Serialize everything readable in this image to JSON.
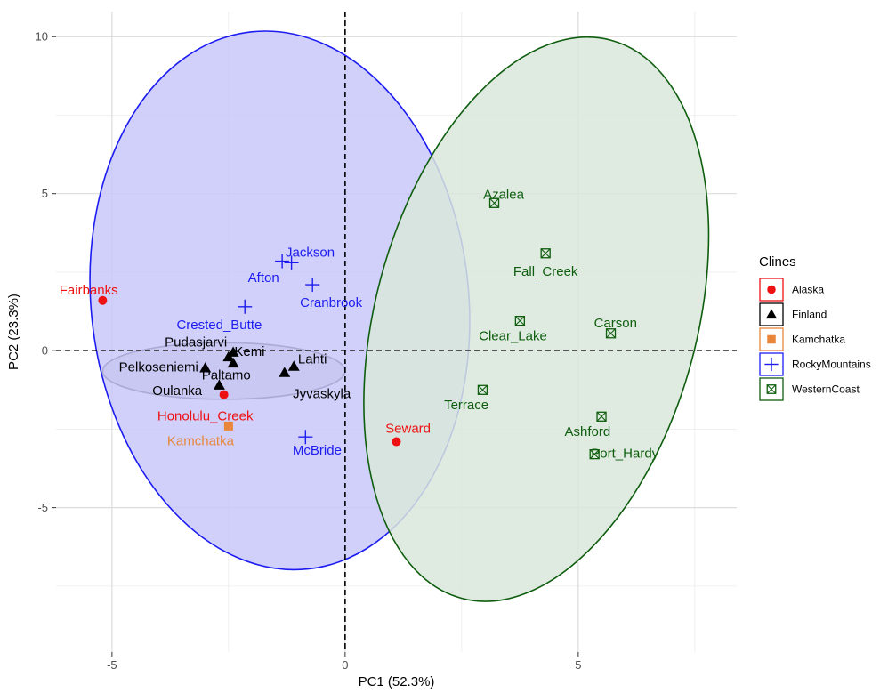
{
  "chart_data": {
    "type": "scatter",
    "title": "",
    "xlabel": "PC1 (52.3%)",
    "ylabel": "PC2 (23.3%)",
    "xlim": [
      -6.2,
      8.4
    ],
    "ylim": [
      -9.6,
      10.8
    ],
    "x_ticks": [
      -5,
      0,
      5
    ],
    "y_ticks": [
      -5,
      0,
      5,
      10
    ],
    "x_tick_labels": [
      "-5",
      "0",
      "5"
    ],
    "y_tick_labels": [
      "-5",
      "0",
      "5",
      "10"
    ],
    "grid": true,
    "reference_lines": {
      "x": 0,
      "y": 0,
      "style": "dashed"
    },
    "legend": {
      "title": "Clines",
      "position": "right",
      "entries": [
        {
          "name": "Alaska",
          "color": "#ee1111",
          "shape": "circle"
        },
        {
          "name": "Finland",
          "color": "#000000",
          "shape": "triangle"
        },
        {
          "name": "Kamchatka",
          "color": "#e8863a",
          "shape": "square"
        },
        {
          "name": "RockyMountains",
          "color": "#1c1cf0",
          "shape": "plus"
        },
        {
          "name": "WesternCoast",
          "color": "#0f5e0f",
          "shape": "boxcross"
        }
      ]
    },
    "ellipses": [
      {
        "group": "Finland",
        "cx": -2.6,
        "cy": -0.65,
        "rx": 2.6,
        "ry": 0.9,
        "angle": 0,
        "fill": "#bdbdbd",
        "stroke": "#000000"
      },
      {
        "group": "RockyMountains",
        "cx": -1.4,
        "cy": 1.6,
        "rx": 4.05,
        "ry": 8.6,
        "angle": -6,
        "fill": "#c8c8fa",
        "stroke": "#1c1cf0"
      },
      {
        "group": "WesternCoast",
        "cx": 4.1,
        "cy": 1.0,
        "rx": 3.45,
        "ry": 9.2,
        "angle": 15,
        "fill": "#d9e8da",
        "stroke": "#0f5e0f"
      }
    ],
    "series": [
      {
        "name": "Alaska",
        "color": "#ee1111",
        "shape": "circle",
        "points": [
          {
            "label": "Fairbanks",
            "x": -5.2,
            "y": 1.6,
            "lx": -5.5,
            "ly": 1.9
          },
          {
            "label": "Honolulu_Creek",
            "x": -2.6,
            "y": -1.4,
            "lx": -3.0,
            "ly": -2.1
          },
          {
            "label": "Seward",
            "x": 1.1,
            "y": -2.9,
            "lx": 1.35,
            "ly": -2.5
          }
        ]
      },
      {
        "name": "Finland",
        "color": "#000000",
        "shape": "triangle",
        "points": [
          {
            "label": "Pudasjarvi",
            "x": -2.5,
            "y": -0.2,
            "lx": -3.2,
            "ly": 0.25
          },
          {
            "label": "Kemi",
            "x": -2.4,
            "y": -0.05,
            "lx": -2.05,
            "ly": -0.05
          },
          {
            "label": "Lahti",
            "x": -1.1,
            "y": -0.5,
            "lx": -0.7,
            "ly": -0.3
          },
          {
            "label": "Pelkoseniemi",
            "x": -3.0,
            "y": -0.55,
            "lx": -4.0,
            "ly": -0.55
          },
          {
            "label": "Paltamo",
            "x": -2.4,
            "y": -0.4,
            "lx": -2.55,
            "ly": -0.8
          },
          {
            "label": "Jyvaskyla",
            "x": -1.3,
            "y": -0.7,
            "lx": -0.5,
            "ly": -1.4
          },
          {
            "label": "Oulanka",
            "x": -2.7,
            "y": -1.1,
            "lx": -3.6,
            "ly": -1.3
          }
        ]
      },
      {
        "name": "Kamchatka",
        "color": "#e8863a",
        "shape": "square",
        "points": [
          {
            "label": "Kamchatka",
            "x": -2.5,
            "y": -2.4,
            "lx": -3.1,
            "ly": -2.9
          }
        ]
      },
      {
        "name": "RockyMountains",
        "color": "#1c1cf0",
        "shape": "plus",
        "points": [
          {
            "label": "Jackson",
            "x": -1.15,
            "y": 2.8,
            "lx": -0.75,
            "ly": 3.1
          },
          {
            "label": "Afton",
            "x": -1.35,
            "y": 2.85,
            "lx": -1.75,
            "ly": 2.3
          },
          {
            "label": "Cranbrook",
            "x": -0.7,
            "y": 2.1,
            "lx": -0.3,
            "ly": 1.5
          },
          {
            "label": "Crested_Butte",
            "x": -2.15,
            "y": 1.4,
            "lx": -2.7,
            "ly": 0.8
          },
          {
            "label": "McBride",
            "x": -0.85,
            "y": -2.75,
            "lx": -0.6,
            "ly": -3.2
          }
        ]
      },
      {
        "name": "WesternCoast",
        "color": "#0f5e0f",
        "shape": "boxcross",
        "points": [
          {
            "label": "Azalea",
            "x": 3.2,
            "y": 4.7,
            "lx": 3.4,
            "ly": 4.95
          },
          {
            "label": "Fall_Creek",
            "x": 4.3,
            "y": 3.1,
            "lx": 4.3,
            "ly": 2.5
          },
          {
            "label": "Clear_Lake",
            "x": 3.75,
            "y": 0.95,
            "lx": 3.6,
            "ly": 0.45
          },
          {
            "label": "Carson",
            "x": 5.7,
            "y": 0.55,
            "lx": 5.8,
            "ly": 0.85
          },
          {
            "label": "Terrace",
            "x": 2.95,
            "y": -1.25,
            "lx": 2.6,
            "ly": -1.75
          },
          {
            "label": "Ashford",
            "x": 5.5,
            "y": -2.1,
            "lx": 5.2,
            "ly": -2.6
          },
          {
            "label": "Port_Hardy",
            "x": 5.35,
            "y": -3.3,
            "lx": 6.0,
            "ly": -3.3
          }
        ]
      }
    ]
  }
}
